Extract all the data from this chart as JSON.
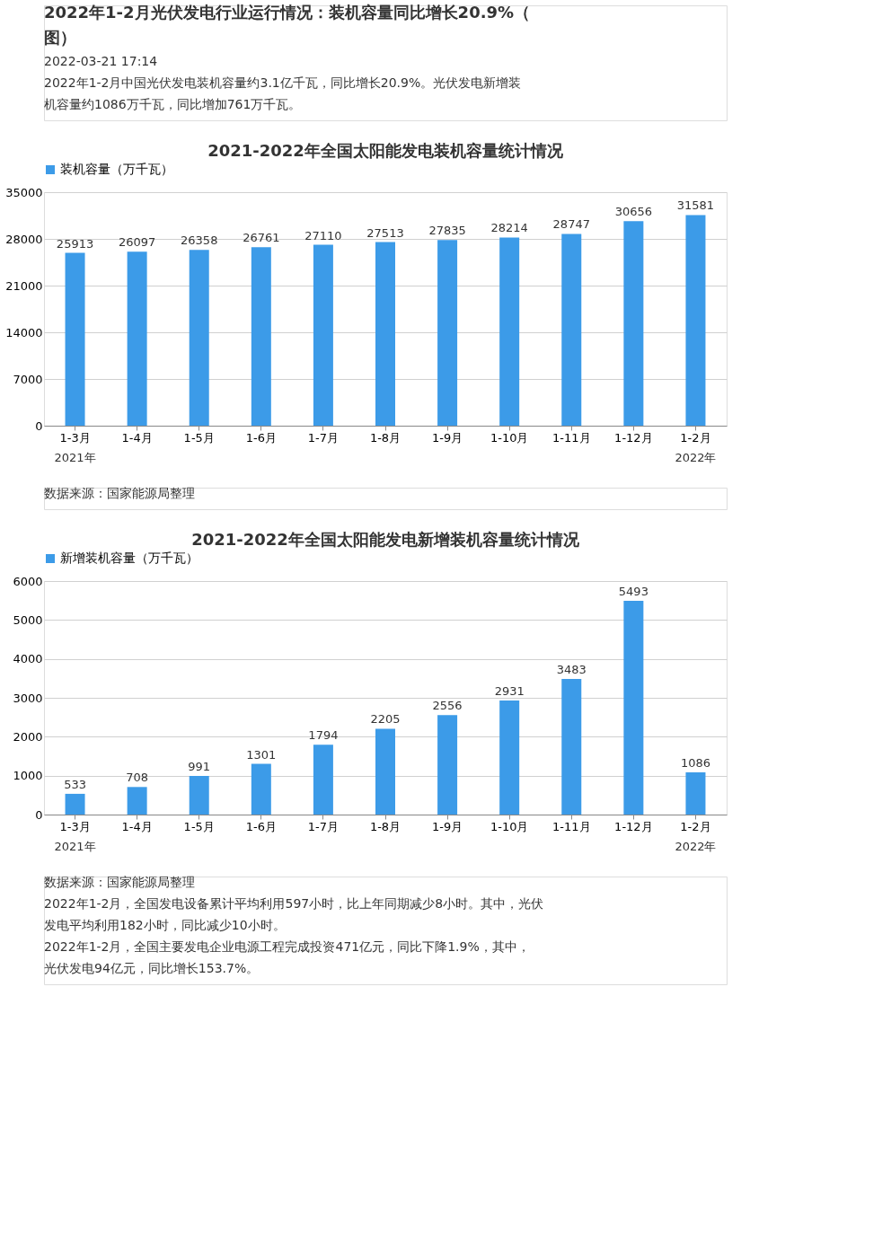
{
  "chart_data": [
    {
      "type": "bar",
      "title": "2021-2022年全国太阳能发电装机容量统计情况",
      "categories": [
        "1-3月",
        "1-4月",
        "1-5月",
        "1-6月",
        "1-7月",
        "1-8月",
        "1-9月",
        "1-10月",
        "1-11月",
        "1-12月",
        "1-2月"
      ],
      "series": [
        {
          "name": "装机容量（万千瓦）",
          "color": "#3c9be8",
          "values": [
            25913,
            26097,
            26358,
            26761,
            27110,
            27513,
            27835,
            28214,
            28747,
            30656,
            31581
          ]
        }
      ],
      "ylim": [
        0,
        35000
      ],
      "yticks": [
        0,
        7000,
        14000,
        21000,
        28000,
        35000
      ],
      "grid": "y",
      "legend": "top",
      "data_labels": true,
      "annotations": [
        "2022年1-2月光伏发电行业运行情况：装机容量同比增长20.9%（图）",
        "2022-03-21 17:14",
        "2022年1-2月中国光伏发电装机容量约3.1亿千瓦，同比增长20.9%。光伏发电新增装机容量约1086万千瓦，同比增加761万千瓦。",
        "2021年",
        "2022年",
        "数据来源：国家能源局整理"
      ]
    },
    {
      "type": "bar",
      "title": "2021-2022年全国太阳能发电新增装机容量统计情况",
      "categories": [
        "1-3月",
        "1-4月",
        "1-5月",
        "1-6月",
        "1-7月",
        "1-8月",
        "1-9月",
        "1-10月",
        "1-11月",
        "1-12月",
        "1-2月"
      ],
      "series": [
        {
          "name": "新增装机容量（万千瓦）",
          "color": "#3c9be8",
          "values": [
            533,
            708,
            991,
            1301,
            1794,
            2205,
            2556,
            2931,
            3483,
            5493,
            1086
          ]
        }
      ],
      "ylim": [
        0,
        6000
      ],
      "yticks": [
        0,
        1000,
        2000,
        3000,
        4000,
        5000,
        6000
      ],
      "grid": "y",
      "legend": "top",
      "data_labels": true,
      "annotations": [
        "2021年",
        "2022年",
        "数据来源：国家能源局整理",
        "2022年1-2月，全国发电设备累计平均利用597小时，比上年同期减少8小时。其中，光伏发电平均利用182小时，同比减少10小时。",
        "2022年1-2月，全国主要发电企业电源工程完成投资471亿元，同比下降1.9%，其中，光伏发电94亿元，同比增长153.7%。"
      ]
    }
  ]
}
